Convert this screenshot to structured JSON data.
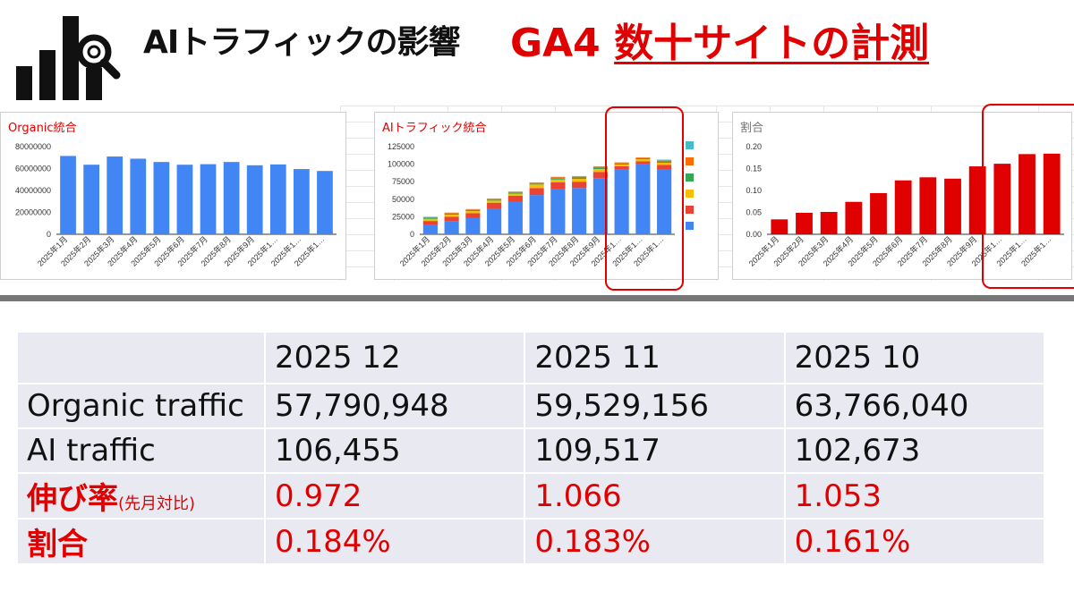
{
  "header": {
    "title": "AIトラフィックの影響",
    "title_red_prefix": "GA4",
    "title_red_underlined": "数十サイトの計測"
  },
  "colors": {
    "accent_red": "#e00000",
    "bar_blue": "#4285f4",
    "ai_stack": [
      "#4285f4",
      "#ea4335",
      "#fbbc04",
      "#34a853",
      "#ff6d01",
      "#46bdc6"
    ]
  },
  "chart_data": [
    {
      "type": "bar",
      "title": "Organic統合",
      "categories": [
        "2025年1月",
        "2025年2月",
        "2025年3月",
        "2025年4月",
        "2025年5月",
        "2025年6月",
        "2025年7月",
        "2025年8月",
        "2025年9月",
        "2025年1…",
        "2025年1…",
        "2025年1…"
      ],
      "values": [
        71500000,
        63500000,
        71000000,
        69000000,
        66000000,
        63500000,
        64000000,
        66000000,
        63000000,
        63766040,
        59529156,
        57790948
      ],
      "y_ticks": [
        "0",
        "20000000",
        "40000000",
        "60000000",
        "80000000"
      ],
      "ylim": [
        0,
        80000000
      ],
      "grid": false
    },
    {
      "type": "bar",
      "stacked": true,
      "title": "AIトラフィック統合",
      "categories": [
        "2025年1月",
        "2025年2月",
        "2025年3月",
        "2025年4月",
        "2025年5月",
        "2025年6月",
        "2025年7月",
        "2025年8月",
        "2025年9月",
        "2025年1…",
        "2025年1…",
        "2025年1…"
      ],
      "series": [
        {
          "values": [
            14000,
            19000,
            23000,
            37000,
            46000,
            56000,
            65000,
            66000,
            80000,
            92000,
            100000,
            92000
          ]
        },
        {
          "values": [
            5000,
            6000,
            7000,
            8000,
            9000,
            10000,
            9000,
            9000,
            9000,
            5000,
            4000,
            7000
          ]
        },
        {
          "values": [
            3000,
            3000,
            3000,
            3000,
            3000,
            5000,
            4000,
            4000,
            4000,
            2500,
            3000,
            3000
          ]
        },
        {
          "values": [
            1500,
            1500,
            1500,
            1500,
            1500,
            1500,
            2000,
            2000,
            2000,
            1500,
            1500,
            2000
          ]
        },
        {
          "values": [
            1000,
            1000,
            1000,
            1000,
            1000,
            1000,
            1500,
            1500,
            1500,
            1000,
            1000,
            1500
          ]
        },
        {
          "values": [
            500,
            500,
            500,
            500,
            500,
            500,
            500,
            500,
            500,
            673,
            17,
            955
          ]
        }
      ],
      "totals": [
        25000,
        31000,
        36000,
        51000,
        61000,
        74000,
        82000,
        83000,
        97000,
        102673,
        109517,
        106455
      ],
      "y_ticks": [
        "0",
        "25000",
        "50000",
        "75000",
        "100000",
        "125000"
      ],
      "ylim": [
        0,
        125000
      ],
      "grid": false,
      "legend": "right"
    },
    {
      "type": "bar",
      "title": "割合",
      "categories": [
        "2025年1月",
        "2025年2月",
        "2025年3月",
        "2025年4月",
        "2025年5月",
        "2025年6月",
        "2025年7月",
        "2025年8月",
        "2025年9月",
        "2025年1…",
        "2025年1…",
        "2025年1…"
      ],
      "values": [
        0.034,
        0.049,
        0.051,
        0.074,
        0.094,
        0.123,
        0.13,
        0.127,
        0.155,
        0.161,
        0.183,
        0.184
      ],
      "y_ticks": [
        "0.00",
        "0.05",
        "0.10",
        "0.15",
        "0.20"
      ],
      "ylim": [
        0,
        0.2
      ],
      "grid": false
    }
  ],
  "table": {
    "columns": [
      "",
      "2025 12",
      "2025 11",
      "2025 10"
    ],
    "rows": [
      {
        "label": "Organic traffic",
        "values": [
          "57,790,948",
          "59,529,156",
          "63,766,040"
        ]
      },
      {
        "label": "AI traffic",
        "values": [
          "106,455",
          "109,517",
          "102,673"
        ]
      },
      {
        "label": "伸び率",
        "label_suffix": "(先月対比)",
        "values": [
          "0.972",
          "1.066",
          "1.053"
        ]
      },
      {
        "label": "割合",
        "values": [
          "0.184%",
          "0.183%",
          "0.161%"
        ]
      }
    ]
  }
}
